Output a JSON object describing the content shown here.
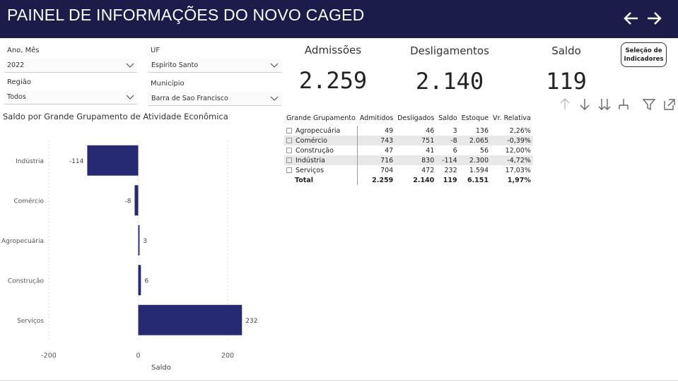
{
  "header": {
    "title": "PAINEL DE INFORMAÇÕES DO NOVO CAGED"
  },
  "filters": [
    {
      "label": "Ano, Mês",
      "value": "2022"
    },
    {
      "label": "UF",
      "value": "Espírito Santo"
    },
    {
      "label": "Região",
      "value": "Todos"
    },
    {
      "label": "Município",
      "value": "Barra de Sao Francisco"
    }
  ],
  "kpis": [
    {
      "label": "Admissões",
      "value": "2.259"
    },
    {
      "label": "Desligamentos",
      "value": "2.140"
    },
    {
      "label": "Saldo",
      "value": "119"
    }
  ],
  "button": "Seleção de Indicadores",
  "table": {
    "columns": [
      "Grande Grupamento",
      "Admitidos",
      "Desligados",
      "Saldo",
      "Estoque",
      "Vr. Relativa"
    ],
    "rows": [
      [
        "Agropecuária",
        "49",
        "46",
        "3",
        "136",
        "2,26%"
      ],
      [
        "Comércio",
        "743",
        "751",
        "-8",
        "2.065",
        "-0,39%"
      ],
      [
        "Construção",
        "47",
        "41",
        "6",
        "56",
        "12,00%"
      ],
      [
        "Indústria",
        "716",
        "830",
        "-114",
        "2.300",
        "-4,72%"
      ],
      [
        "Serviços",
        "704",
        "472",
        "232",
        "1.594",
        "17,03%"
      ]
    ],
    "total": [
      "Total",
      "2.259",
      "2.140",
      "119",
      "6.151",
      "1,97%"
    ]
  },
  "chart_data": {
    "type": "hbar",
    "title": "Saldo por Grande Grupamento de Atividade Econômica",
    "categories": [
      "Indústria",
      "Comércio",
      "Agropecuária",
      "Construção",
      "Serviços"
    ],
    "values": [
      -114,
      -8,
      3,
      6,
      232
    ],
    "color": "#262a73",
    "xlabel": "Saldo",
    "xlim": [
      -200,
      260
    ],
    "xticks": [
      -200,
      0,
      200
    ],
    "grid": true
  }
}
